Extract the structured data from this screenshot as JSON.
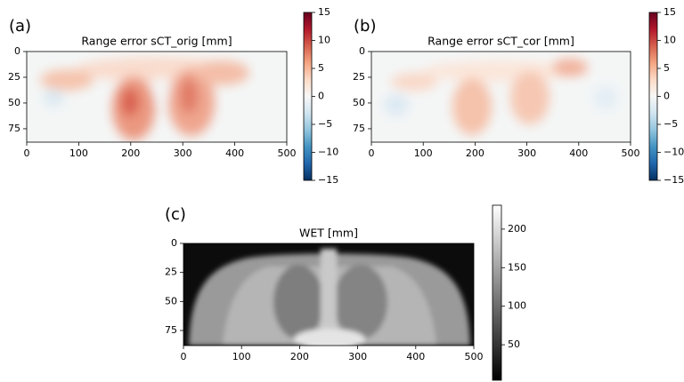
{
  "chart_data": [
    {
      "type": "heatmap",
      "panel_label": "(a)",
      "title": "Range error sCT_orig [mm]",
      "xlim": [
        0,
        500
      ],
      "ylim": [
        0,
        88
      ],
      "y_inverted": true,
      "xticks": [
        0,
        100,
        200,
        300,
        400,
        500
      ],
      "yticks": [
        0,
        25,
        50,
        75
      ],
      "colorbar": {
        "clim": [
          -15,
          15
        ],
        "colormap": [
          "#053061",
          "#2166ac",
          "#4393c3",
          "#92c5de",
          "#d1e5f0",
          "#f7f7f7",
          "#fddbc7",
          "#f4a582",
          "#d6604d",
          "#b2182b",
          "#67001f"
        ],
        "ticks": [
          {
            "value": -15,
            "label": "−15"
          },
          {
            "value": -10,
            "label": "−10"
          },
          {
            "value": -5,
            "label": "−5"
          },
          0,
          5,
          10,
          15
        ]
      }
    },
    {
      "type": "heatmap",
      "panel_label": "(b)",
      "title": "Range error sCT_cor [mm]",
      "xlim": [
        0,
        500
      ],
      "ylim": [
        0,
        88
      ],
      "y_inverted": true,
      "xticks": [
        0,
        100,
        200,
        300,
        400,
        500
      ],
      "yticks": [
        0,
        25,
        50,
        75
      ],
      "colorbar": {
        "clim": [
          -15,
          15
        ],
        "colormap": [
          "#053061",
          "#2166ac",
          "#4393c3",
          "#92c5de",
          "#d1e5f0",
          "#f7f7f7",
          "#fddbc7",
          "#f4a582",
          "#d6604d",
          "#b2182b",
          "#67001f"
        ],
        "ticks": [
          {
            "value": -15,
            "label": "−15"
          },
          {
            "value": -10,
            "label": "−10"
          },
          {
            "value": -5,
            "label": "−5"
          },
          0,
          5,
          10,
          15
        ]
      }
    },
    {
      "type": "heatmap",
      "panel_label": "(c)",
      "title": "WET [mm]",
      "xlim": [
        0,
        500
      ],
      "ylim": [
        0,
        88
      ],
      "y_inverted": true,
      "xticks": [
        0,
        100,
        200,
        300,
        400,
        500
      ],
      "yticks": [
        0,
        25,
        50,
        75
      ],
      "colorbar": {
        "clim": [
          4,
          231
        ],
        "colormap": [
          "#000000",
          "#ffffff"
        ],
        "ticks": [
          50,
          100,
          150,
          200
        ]
      }
    }
  ]
}
